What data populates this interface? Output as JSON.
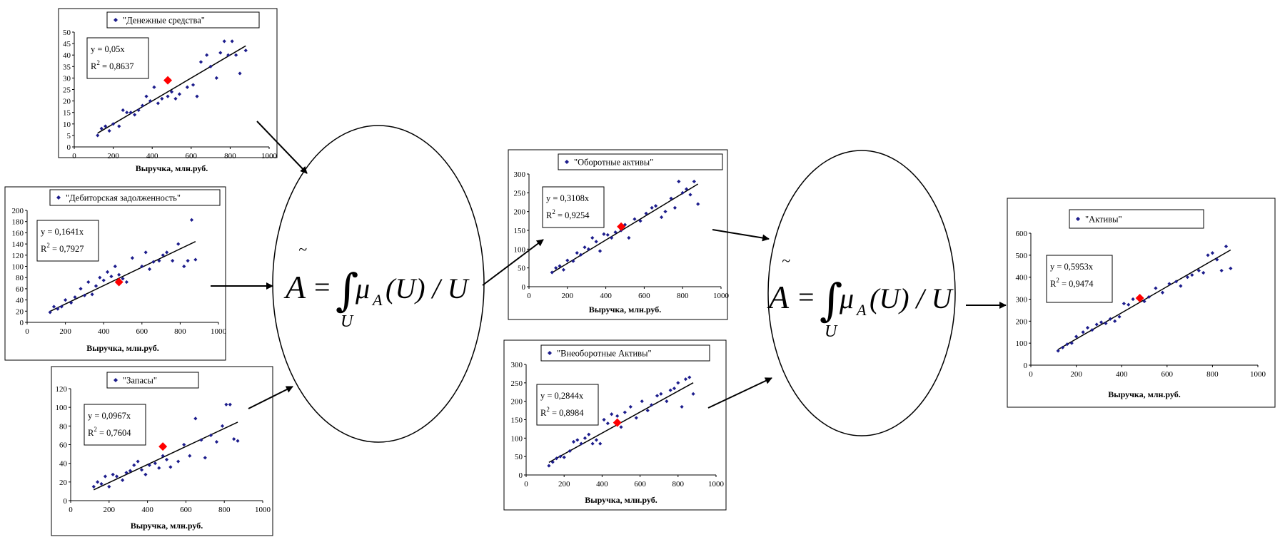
{
  "colors": {
    "point": "#1c1c8c",
    "highlight": "#ff0000",
    "line": "#000000",
    "frame": "#000000"
  },
  "charts": [
    {
      "id": "cash",
      "legend": "\"Денежные средства\"",
      "equation": "y = 0,05x",
      "r2_prefix": "R",
      "r2_value": " = 0,8637",
      "xlabel": "Выручка, млн.руб.",
      "xticks": [
        "0",
        "200",
        "400",
        "600",
        "800",
        "1000"
      ],
      "yticks": [
        "0",
        "5",
        "10",
        "15",
        "20",
        "25",
        "30",
        "35",
        "40",
        "45",
        "50"
      ]
    },
    {
      "id": "receivables",
      "legend": "\"Дебиторская задолженность\"",
      "equation": "y = 0,1641x",
      "r2_prefix": "R",
      "r2_value": " = 0,7927",
      "xlabel": "Выручка, млн.руб.",
      "xticks": [
        "0",
        "200",
        "400",
        "600",
        "800",
        "1000"
      ],
      "yticks": [
        "0",
        "20",
        "40",
        "60",
        "80",
        "100",
        "120",
        "140",
        "160",
        "180",
        "200"
      ]
    },
    {
      "id": "inventory",
      "legend": "\"Запасы\"",
      "equation": "y = 0,0967x",
      "r2_prefix": "R",
      "r2_value": " = 0,7604",
      "xlabel": "Выручка, млн.руб.",
      "xticks": [
        "0",
        "200",
        "400",
        "600",
        "800",
        "1000"
      ],
      "yticks": [
        "0",
        "20",
        "40",
        "60",
        "80",
        "100",
        "120"
      ]
    },
    {
      "id": "current-assets",
      "legend": "\"Оборотные активы\"",
      "equation": "y = 0,3108x",
      "r2_prefix": "R",
      "r2_value": " = 0,9254",
      "xlabel": "Выручка, млн.руб.",
      "xticks": [
        "0",
        "200",
        "400",
        "600",
        "800",
        "1000"
      ],
      "yticks": [
        "0",
        "50",
        "100",
        "150",
        "200",
        "250",
        "300"
      ]
    },
    {
      "id": "noncurrent-assets",
      "legend": "\"Внеоборотные Активы\"",
      "equation": "y = 0,2844x",
      "r2_prefix": "R",
      "r2_value": " = 0,8984",
      "xlabel": "Выручка, млн.руб.",
      "xticks": [
        "0",
        "200",
        "400",
        "600",
        "800",
        "1000"
      ],
      "yticks": [
        "0",
        "50",
        "100",
        "150",
        "200",
        "250",
        "300"
      ]
    },
    {
      "id": "assets",
      "legend": "\"Активы\"",
      "equation": "y = 0,5953x",
      "r2_prefix": "R",
      "r2_value": " = 0,9474",
      "xlabel": "Выручка, млн.руб.",
      "xticks": [
        "0",
        "200",
        "400",
        "600",
        "800",
        "1000"
      ],
      "yticks": [
        "0",
        "100",
        "200",
        "300",
        "400",
        "500",
        "600"
      ]
    }
  ],
  "formula": {
    "lhs": "A",
    "tilde": "~",
    "eq": "=",
    "integral": "∫",
    "body": "μ",
    "sub": "A",
    "rest": "(U) / U",
    "limit": "U"
  },
  "chart_data": [
    {
      "type": "scatter",
      "title": "\"Денежные средства\"",
      "xlabel": "Выручка, млн.руб.",
      "ylabel": "",
      "xlim": [
        0,
        1000
      ],
      "ylim": [
        0,
        50
      ],
      "trend": {
        "slope": 0.05,
        "r2": 0.8637
      },
      "highlight": [
        480,
        29
      ],
      "x": [
        120,
        140,
        160,
        180,
        200,
        230,
        250,
        270,
        290,
        310,
        330,
        350,
        370,
        390,
        410,
        430,
        450,
        480,
        500,
        520,
        540,
        580,
        610,
        630,
        650,
        680,
        700,
        730,
        750,
        770,
        790,
        810,
        830,
        850,
        880
      ],
      "y": [
        5,
        8,
        9,
        7,
        10,
        9,
        16,
        15,
        15,
        14,
        16,
        18,
        22,
        20,
        26,
        19,
        21,
        22,
        24,
        21,
        23,
        26,
        27,
        22,
        37,
        40,
        35,
        30,
        41,
        46,
        40,
        46,
        40,
        32,
        42
      ]
    },
    {
      "type": "scatter",
      "title": "\"Дебиторская задолженность\"",
      "xlabel": "Выручка, млн.руб.",
      "ylabel": "",
      "xlim": [
        0,
        1000
      ],
      "ylim": [
        0,
        200
      ],
      "trend": {
        "slope": 0.1641,
        "r2": 0.7927
      },
      "highlight": [
        480,
        72
      ],
      "x": [
        120,
        140,
        160,
        180,
        200,
        230,
        250,
        280,
        300,
        320,
        340,
        360,
        380,
        400,
        420,
        440,
        460,
        480,
        500,
        520,
        550,
        600,
        620,
        640,
        660,
        690,
        710,
        730,
        760,
        790,
        820,
        840,
        860,
        880
      ],
      "y": [
        18,
        28,
        24,
        28,
        40,
        35,
        45,
        60,
        48,
        72,
        50,
        65,
        80,
        75,
        90,
        82,
        100,
        85,
        78,
        72,
        115,
        100,
        125,
        95,
        108,
        110,
        120,
        125,
        110,
        140,
        100,
        110,
        183,
        112
      ]
    },
    {
      "type": "scatter",
      "title": "\"Запасы\"",
      "xlabel": "Выручка, млн.руб.",
      "ylabel": "",
      "xlim": [
        0,
        1000
      ],
      "ylim": [
        0,
        120
      ],
      "trend": {
        "slope": 0.0967,
        "r2": 0.7604
      },
      "highlight": [
        480,
        58
      ],
      "x": [
        120,
        140,
        160,
        180,
        200,
        220,
        240,
        270,
        290,
        310,
        330,
        350,
        370,
        390,
        410,
        440,
        460,
        480,
        500,
        520,
        560,
        590,
        620,
        650,
        680,
        700,
        730,
        760,
        790,
        810,
        830,
        850,
        870
      ],
      "y": [
        15,
        20,
        18,
        26,
        15,
        28,
        26,
        22,
        30,
        32,
        38,
        42,
        33,
        28,
        38,
        40,
        35,
        48,
        44,
        36,
        42,
        60,
        48,
        88,
        65,
        46,
        70,
        63,
        80,
        103,
        103,
        66,
        64
      ]
    },
    {
      "type": "scatter",
      "title": "\"Оборотные активы\"",
      "xlabel": "Выручка, млн.руб.",
      "ylabel": "",
      "xlim": [
        0,
        1000
      ],
      "ylim": [
        0,
        300
      ],
      "trend": {
        "slope": 0.3108,
        "r2": 0.9254
      },
      "highlight": [
        480,
        160
      ],
      "x": [
        120,
        140,
        160,
        180,
        200,
        230,
        250,
        270,
        290,
        310,
        330,
        350,
        370,
        390,
        410,
        430,
        450,
        480,
        500,
        520,
        550,
        580,
        610,
        640,
        660,
        690,
        710,
        740,
        760,
        780,
        800,
        820,
        840,
        860,
        880
      ],
      "y": [
        38,
        50,
        55,
        45,
        70,
        68,
        90,
        85,
        105,
        100,
        130,
        120,
        95,
        140,
        138,
        130,
        145,
        150,
        165,
        130,
        180,
        175,
        195,
        210,
        215,
        185,
        200,
        235,
        210,
        280,
        250,
        260,
        245,
        280,
        220
      ]
    },
    {
      "type": "scatter",
      "title": "\"Внеоборотные Активы\"",
      "xlabel": "Выручка, млн.руб.",
      "ylabel": "",
      "xlim": [
        0,
        1000
      ],
      "ylim": [
        0,
        300
      ],
      "trend": {
        "slope": 0.2844,
        "r2": 0.8984
      },
      "highlight": [
        480,
        142
      ],
      "x": [
        120,
        140,
        160,
        180,
        200,
        230,
        250,
        270,
        290,
        310,
        330,
        350,
        370,
        390,
        410,
        430,
        450,
        480,
        500,
        520,
        550,
        580,
        610,
        640,
        660,
        690,
        710,
        740,
        760,
        780,
        800,
        820,
        840,
        860,
        880
      ],
      "y": [
        25,
        35,
        45,
        50,
        48,
        65,
        90,
        95,
        85,
        100,
        110,
        85,
        95,
        85,
        150,
        140,
        165,
        160,
        130,
        170,
        185,
        155,
        200,
        175,
        190,
        215,
        220,
        200,
        230,
        235,
        250,
        185,
        260,
        265,
        220
      ]
    },
    {
      "type": "scatter",
      "title": "\"Активы\"",
      "xlabel": "Выручка, млн.руб.",
      "ylabel": "",
      "xlim": [
        0,
        1000
      ],
      "ylim": [
        0,
        600
      ],
      "trend": {
        "slope": 0.5953,
        "r2": 0.9474
      },
      "highlight": [
        480,
        305
      ],
      "x": [
        120,
        140,
        160,
        180,
        200,
        230,
        250,
        270,
        290,
        310,
        330,
        350,
        370,
        390,
        410,
        430,
        450,
        480,
        500,
        520,
        550,
        580,
        610,
        640,
        660,
        690,
        710,
        740,
        760,
        780,
        800,
        820,
        840,
        860,
        880
      ],
      "y": [
        65,
        80,
        95,
        100,
        130,
        150,
        170,
        160,
        185,
        195,
        190,
        210,
        200,
        220,
        280,
        275,
        300,
        310,
        290,
        310,
        350,
        330,
        370,
        380,
        360,
        400,
        410,
        430,
        420,
        500,
        510,
        480,
        430,
        540,
        440
      ]
    }
  ]
}
